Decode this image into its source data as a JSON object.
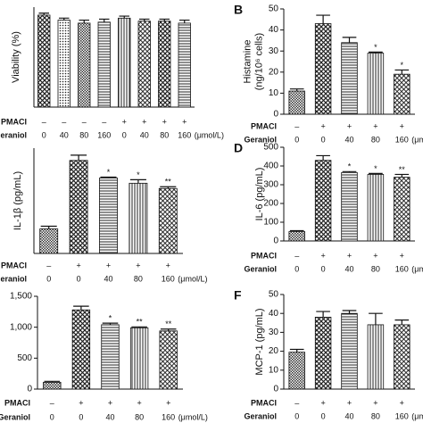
{
  "chart_data": [
    {
      "type": "bar",
      "ylabel": [
        "Viability (%)"
      ],
      "values": [
        92,
        87,
        84,
        85,
        89,
        86,
        86,
        84
      ],
      "errors": [
        2,
        2,
        3,
        3,
        2,
        2,
        2,
        3
      ],
      "ylim": [
        0,
        100
      ],
      "conditions": [
        {
          "name": "PMACI",
          "values": [
            "–",
            "–",
            "–",
            "–",
            "+",
            "+",
            "+",
            "+"
          ]
        },
        {
          "name": "Geraniol",
          "values": [
            "0",
            "40",
            "80",
            "160",
            "0",
            "40",
            "80",
            "160"
          ],
          "unit": "(μmol/L)"
        }
      ]
    },
    {
      "type": "bar",
      "label": "B",
      "ylabel": [
        "Histamine",
        "(ng/10⁶ cells)"
      ],
      "values": [
        11,
        43,
        34,
        29,
        19
      ],
      "errors": [
        1,
        4,
        2.5,
        0.5,
        2
      ],
      "annotations": [
        null,
        null,
        null,
        "*",
        "*"
      ],
      "ylim": [
        0,
        50
      ],
      "yticks": [
        0,
        10,
        20,
        30,
        40,
        50
      ],
      "conditions": [
        {
          "name": "PMACI",
          "values": [
            "–",
            "+",
            "+",
            "+",
            "+"
          ]
        },
        {
          "name": "Geraniol",
          "values": [
            "0",
            "0",
            "40",
            "80",
            "160"
          ],
          "unit": "(μmol/L)"
        }
      ]
    },
    {
      "type": "bar",
      "ylabel": [
        "IL-1β (pg/mL)"
      ],
      "values": [
        14,
        53,
        43,
        40,
        37
      ],
      "errors": [
        1.5,
        3,
        0.5,
        2,
        1
      ],
      "annotations": [
        null,
        null,
        "*",
        "*",
        "**"
      ],
      "ylim": [
        0,
        60
      ],
      "conditions": [
        {
          "name": "PMACI",
          "values": [
            "–",
            "+",
            "+",
            "+",
            "+"
          ]
        },
        {
          "name": "Geraniol",
          "values": [
            "0",
            "0",
            "40",
            "80",
            "160"
          ],
          "unit": "(μmol/L)"
        }
      ]
    },
    {
      "type": "bar",
      "label": "D",
      "ylabel": [
        "IL-6 (pg/mL)"
      ],
      "values": [
        50,
        430,
        365,
        355,
        340
      ],
      "errors": [
        5,
        25,
        5,
        5,
        15
      ],
      "annotations": [
        null,
        null,
        "*",
        "*",
        "**"
      ],
      "ylim": [
        0,
        500
      ],
      "yticks": [
        0,
        100,
        200,
        300,
        400,
        500
      ],
      "conditions": [
        {
          "name": "PMACI",
          "values": [
            "–",
            "+",
            "+",
            "+",
            "+"
          ]
        },
        {
          "name": "Geraniol",
          "values": [
            "0",
            "0",
            "40",
            "80",
            "160"
          ],
          "unit": "(μmol/L)"
        }
      ]
    },
    {
      "type": "bar",
      "values": [
        110,
        1280,
        1040,
        990,
        940
      ],
      "errors": [
        15,
        60,
        25,
        15,
        30
      ],
      "annotations": [
        null,
        null,
        "*",
        "**",
        "**"
      ],
      "ylim": [
        0,
        1500
      ],
      "yticks": [
        0,
        500,
        {
          "value": 1000,
          "label": "1,000"
        },
        {
          "value": 1500,
          "label": "1,500"
        }
      ],
      "conditions": [
        {
          "name": "PMACI",
          "values": [
            "–",
            "+",
            "+",
            "+",
            "+"
          ]
        },
        {
          "name": "Geraniol",
          "values": [
            "0",
            "0",
            "40",
            "80",
            "160"
          ],
          "unit": "(μmol/L)"
        }
      ]
    },
    {
      "type": "bar",
      "label": "F",
      "ylabel": [
        "MCP-1 (pg/mL)"
      ],
      "values": [
        19.5,
        38,
        40,
        34,
        34
      ],
      "errors": [
        1.5,
        3,
        1.5,
        6,
        2.5
      ],
      "ylim": [
        0,
        50
      ],
      "yticks": [
        0,
        10,
        20,
        30,
        40,
        50
      ],
      "conditions": [
        {
          "name": "PMACI",
          "values": [
            "–",
            "+",
            "+",
            "+",
            "+"
          ]
        },
        {
          "name": "Geraniol",
          "values": [
            "0",
            "0",
            "40",
            "80",
            "160"
          ],
          "unit": "(μmol/L)"
        }
      ]
    }
  ]
}
